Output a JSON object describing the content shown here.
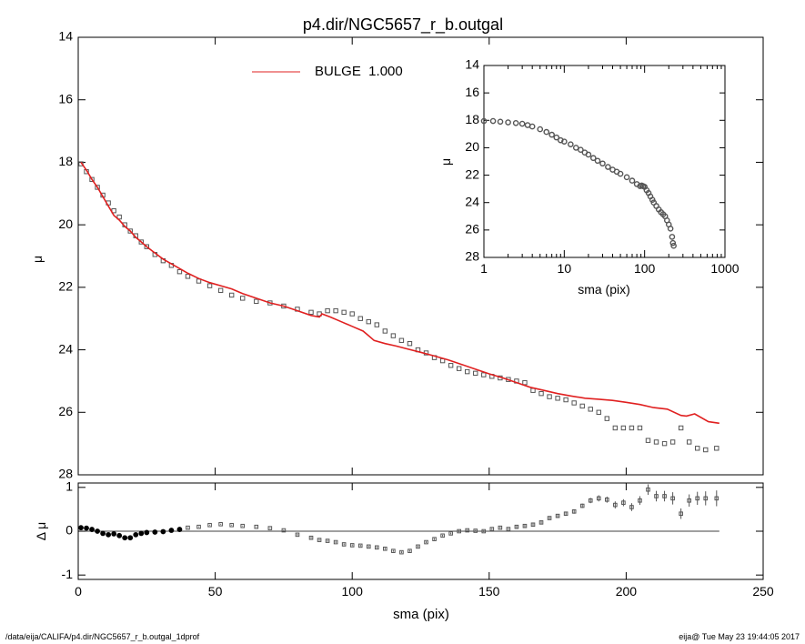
{
  "title": "p4.dir/NGC5657_r_b.outgal",
  "footer": {
    "left": "/data/eija/CALIFA/p4.dir/NGC5657_r_b.outgal_1dprof",
    "right": "eija@  Tue May 23 19:44:05 2017"
  },
  "colors": {
    "model": "#e02020",
    "data": "#555555",
    "axis": "#000000"
  },
  "chart_data": [
    {
      "id": "main",
      "type": "scatter",
      "xlabel": "",
      "ylabel": "μ",
      "xlim": [
        0,
        250
      ],
      "ylim": [
        28,
        14
      ],
      "y_reversed": true,
      "yticks": [
        14,
        16,
        18,
        20,
        22,
        24,
        26,
        28
      ],
      "ytick_labels": [
        "14",
        "16",
        "18",
        "20",
        "22",
        "24",
        "26",
        "28"
      ],
      "legend": {
        "label": "BULGE  1.000",
        "placement": "top-center",
        "color": "#e02020"
      },
      "model_line": {
        "name": "BULGE",
        "x": [
          1,
          3,
          5,
          7,
          9,
          11,
          13,
          15,
          17,
          19,
          21,
          23,
          25,
          28,
          31,
          34,
          37,
          40,
          44,
          48,
          52,
          56,
          60,
          65,
          70,
          75,
          80,
          85,
          88,
          89,
          92,
          96,
          100,
          104,
          106,
          108,
          112,
          116,
          120,
          125,
          130,
          135,
          140,
          145,
          150,
          155,
          160,
          165,
          170,
          175,
          180,
          185,
          190,
          195,
          200,
          205,
          210,
          215,
          220,
          222,
          225,
          230,
          234
        ],
        "y": [
          18.0,
          18.25,
          18.55,
          18.8,
          19.1,
          19.4,
          19.7,
          19.85,
          20.05,
          20.2,
          20.4,
          20.55,
          20.7,
          20.9,
          21.1,
          21.25,
          21.4,
          21.55,
          21.72,
          21.85,
          21.95,
          22.05,
          22.2,
          22.35,
          22.5,
          22.6,
          22.75,
          22.9,
          22.95,
          22.85,
          22.95,
          23.1,
          23.25,
          23.4,
          23.55,
          23.7,
          23.8,
          23.88,
          23.97,
          24.08,
          24.2,
          24.32,
          24.47,
          24.62,
          24.77,
          24.9,
          25.05,
          25.2,
          25.3,
          25.4,
          25.48,
          25.55,
          25.58,
          25.62,
          25.68,
          25.75,
          25.85,
          25.9,
          26.1,
          26.12,
          26.05,
          26.3,
          26.35
        ]
      },
      "data_points": {
        "x": [
          1,
          3,
          5,
          7,
          9,
          11,
          13,
          15,
          17,
          19,
          21,
          23,
          25,
          28,
          31,
          34,
          37,
          40,
          44,
          48,
          52,
          56,
          60,
          65,
          70,
          75,
          80,
          85,
          88,
          91,
          94,
          97,
          100,
          103,
          106,
          109,
          112,
          115,
          118,
          121,
          124,
          127,
          130,
          133,
          136,
          139,
          142,
          145,
          148,
          151,
          154,
          157,
          160,
          163,
          166,
          169,
          172,
          175,
          178,
          181,
          184,
          187,
          190,
          193,
          196,
          199,
          202,
          205,
          208,
          211,
          214,
          217,
          220,
          223,
          226,
          229,
          233
        ],
        "y": [
          18.05,
          18.3,
          18.55,
          18.8,
          19.05,
          19.3,
          19.55,
          19.75,
          20.0,
          20.2,
          20.35,
          20.55,
          20.7,
          20.95,
          21.15,
          21.3,
          21.5,
          21.65,
          21.8,
          21.95,
          22.1,
          22.25,
          22.35,
          22.45,
          22.5,
          22.6,
          22.7,
          22.8,
          22.85,
          22.75,
          22.75,
          22.8,
          22.85,
          23.0,
          23.1,
          23.2,
          23.4,
          23.55,
          23.7,
          23.8,
          24.0,
          24.1,
          24.25,
          24.35,
          24.5,
          24.6,
          24.7,
          24.75,
          24.8,
          24.85,
          24.9,
          24.95,
          25.0,
          25.05,
          25.3,
          25.4,
          25.5,
          25.55,
          25.6,
          25.7,
          25.8,
          25.9,
          26.0,
          26.2,
          26.5,
          26.5,
          26.5,
          26.5,
          26.9,
          26.95,
          27.0,
          26.95,
          26.5,
          26.95,
          27.15,
          27.2,
          27.15
        ]
      }
    },
    {
      "id": "inset",
      "type": "scatter",
      "xlabel": "sma (pix)",
      "ylabel": "μ",
      "xscale": "log",
      "xlim": [
        1,
        1000
      ],
      "xticks": [
        1,
        10,
        100,
        1000
      ],
      "xtick_labels": [
        "1",
        "10",
        "100",
        "1000"
      ],
      "ylim": [
        28,
        14
      ],
      "y_reversed": true,
      "yticks": [
        14,
        16,
        18,
        20,
        22,
        24,
        26,
        28
      ],
      "ytick_labels": [
        "14",
        "16",
        "18",
        "20",
        "22",
        "24",
        "26",
        "28"
      ],
      "data_points": {
        "x": [
          1,
          1.3,
          1.6,
          2,
          2.5,
          3,
          3.5,
          4,
          5,
          6,
          7,
          8,
          9,
          10,
          12,
          14,
          16,
          18,
          20,
          23,
          26,
          30,
          35,
          40,
          45,
          50,
          60,
          70,
          80,
          88,
          92,
          96,
          100,
          106,
          112,
          118,
          125,
          130,
          140,
          150,
          160,
          170,
          180,
          190,
          200,
          210,
          220,
          225,
          230
        ],
        "y": [
          18.05,
          18.05,
          18.1,
          18.15,
          18.2,
          18.25,
          18.35,
          18.45,
          18.65,
          18.85,
          19.05,
          19.25,
          19.45,
          19.55,
          19.75,
          20.0,
          20.15,
          20.35,
          20.5,
          20.75,
          20.95,
          21.15,
          21.4,
          21.6,
          21.75,
          21.9,
          22.15,
          22.4,
          22.65,
          22.8,
          22.75,
          22.8,
          22.85,
          23.1,
          23.3,
          23.55,
          23.8,
          24.0,
          24.25,
          24.5,
          24.7,
          24.85,
          25.0,
          25.3,
          25.6,
          25.9,
          26.5,
          26.95,
          27.15
        ]
      }
    },
    {
      "id": "residual",
      "type": "scatter",
      "xlabel": "sma (pix)",
      "ylabel": "Δ μ",
      "xlim": [
        0,
        250
      ],
      "xticks": [
        0,
        50,
        100,
        150,
        200,
        250
      ],
      "xtick_labels": [
        "0",
        "50",
        "100",
        "150",
        "200",
        "250"
      ],
      "ylim": [
        -1.1,
        1.1
      ],
      "yticks": [
        -1,
        0,
        1
      ],
      "ytick_labels": [
        "-1",
        "0",
        "1"
      ],
      "reference_line": 0,
      "data_points": {
        "x": [
          1,
          3,
          5,
          7,
          9,
          11,
          13,
          15,
          17,
          19,
          21,
          23,
          25,
          28,
          31,
          34,
          37,
          40,
          44,
          48,
          52,
          56,
          60,
          65,
          70,
          75,
          80,
          85,
          88,
          91,
          94,
          97,
          100,
          103,
          106,
          109,
          112,
          115,
          118,
          121,
          124,
          127,
          130,
          133,
          136,
          139,
          142,
          145,
          148,
          151,
          154,
          157,
          160,
          163,
          166,
          169,
          172,
          175,
          178,
          181,
          184,
          187,
          190,
          193,
          196,
          199,
          202,
          205,
          208,
          211,
          214,
          217,
          220,
          223,
          226,
          229,
          233
        ],
        "y": [
          0.08,
          0.07,
          0.04,
          0.0,
          -0.05,
          -0.08,
          -0.06,
          -0.1,
          -0.15,
          -0.15,
          -0.08,
          -0.05,
          -0.03,
          -0.02,
          -0.01,
          0.02,
          0.04,
          0.08,
          0.1,
          0.14,
          0.16,
          0.14,
          0.12,
          0.1,
          0.07,
          0.02,
          -0.08,
          -0.15,
          -0.2,
          -0.22,
          -0.25,
          -0.3,
          -0.32,
          -0.33,
          -0.35,
          -0.37,
          -0.4,
          -0.45,
          -0.48,
          -0.45,
          -0.35,
          -0.25,
          -0.18,
          -0.1,
          -0.05,
          0.0,
          0.02,
          0.01,
          0.0,
          0.05,
          0.08,
          0.05,
          0.1,
          0.12,
          0.15,
          0.2,
          0.3,
          0.35,
          0.4,
          0.45,
          0.58,
          0.7,
          0.75,
          0.72,
          0.6,
          0.65,
          0.55,
          0.7,
          0.95,
          0.8,
          0.8,
          0.75,
          0.4,
          0.7,
          0.75,
          0.75,
          0.75
        ],
        "errors": [
          0.01,
          0.01,
          0.01,
          0.01,
          0.01,
          0.01,
          0.01,
          0.01,
          0.01,
          0.01,
          0.01,
          0.01,
          0.01,
          0.01,
          0.01,
          0.01,
          0.01,
          0.01,
          0.01,
          0.01,
          0.01,
          0.01,
          0.01,
          0.01,
          0.01,
          0.01,
          0.02,
          0.02,
          0.02,
          0.02,
          0.02,
          0.02,
          0.02,
          0.02,
          0.02,
          0.02,
          0.02,
          0.02,
          0.02,
          0.02,
          0.02,
          0.02,
          0.02,
          0.02,
          0.02,
          0.02,
          0.02,
          0.02,
          0.02,
          0.02,
          0.02,
          0.02,
          0.03,
          0.03,
          0.03,
          0.03,
          0.03,
          0.04,
          0.04,
          0.05,
          0.05,
          0.06,
          0.07,
          0.07,
          0.08,
          0.08,
          0.09,
          0.1,
          0.12,
          0.12,
          0.12,
          0.14,
          0.12,
          0.14,
          0.15,
          0.16,
          0.18
        ]
      }
    }
  ]
}
